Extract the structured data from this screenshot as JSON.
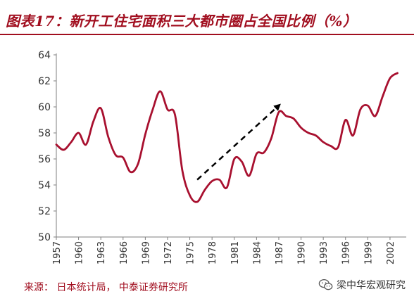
{
  "figure": {
    "title": "图表17：新开工住宅面积三大都市圈占全国比例（%）",
    "source": "来源： 日本统计局， 中泰证券研究所",
    "watermark": "梁中华宏观研究"
  },
  "colors": {
    "line": "#a8102f",
    "accent": "#a10e1f",
    "axis": "#7f7f7f",
    "arrow": "#000000"
  },
  "chart_data": {
    "type": "line",
    "title": "",
    "xlabel": "",
    "ylabel": "",
    "ylim": [
      50,
      64
    ],
    "xlim": [
      1957,
      2004
    ],
    "yticks": [
      50,
      52,
      54,
      56,
      58,
      60,
      62,
      64
    ],
    "xticks": [
      1957,
      1960,
      1963,
      1966,
      1969,
      1972,
      1975,
      1978,
      1981,
      1984,
      1987,
      1990,
      1993,
      1996,
      1999,
      2002
    ],
    "grid": false,
    "legend": "none",
    "series": [
      {
        "x": [
          1957,
          1958,
          1959,
          1960,
          1961,
          1962,
          1963,
          1964,
          1965,
          1966,
          1967,
          1968,
          1969,
          1970,
          1971,
          1972,
          1973,
          1974,
          1975,
          1976,
          1977,
          1978,
          1979,
          1980,
          1981,
          1982,
          1983,
          1984,
          1985,
          1986,
          1987,
          1988,
          1989,
          1990,
          1991,
          1992,
          1993,
          1994,
          1995,
          1996,
          1997,
          1998,
          1999,
          2000,
          2001,
          2002,
          2003
        ],
        "values": [
          57.1,
          56.7,
          57.3,
          58.0,
          57.1,
          58.9,
          59.9,
          57.7,
          56.3,
          56.1,
          55.0,
          55.6,
          57.9,
          59.8,
          61.2,
          59.8,
          59.4,
          55.1,
          53.2,
          52.7,
          53.6,
          54.3,
          54.4,
          53.8,
          56.0,
          55.8,
          54.7,
          56.4,
          56.5,
          57.6,
          59.6,
          59.3,
          59.1,
          58.4,
          58.0,
          57.8,
          57.3,
          57.0,
          56.9,
          59.0,
          57.8,
          59.8,
          60.1,
          59.3,
          60.8,
          62.2,
          62.6
        ]
      }
    ],
    "annotations": [
      {
        "type": "arrow",
        "style": "dashed",
        "from": [
          1976,
          54.4
        ],
        "to": [
          1987,
          60.1
        ]
      }
    ]
  }
}
